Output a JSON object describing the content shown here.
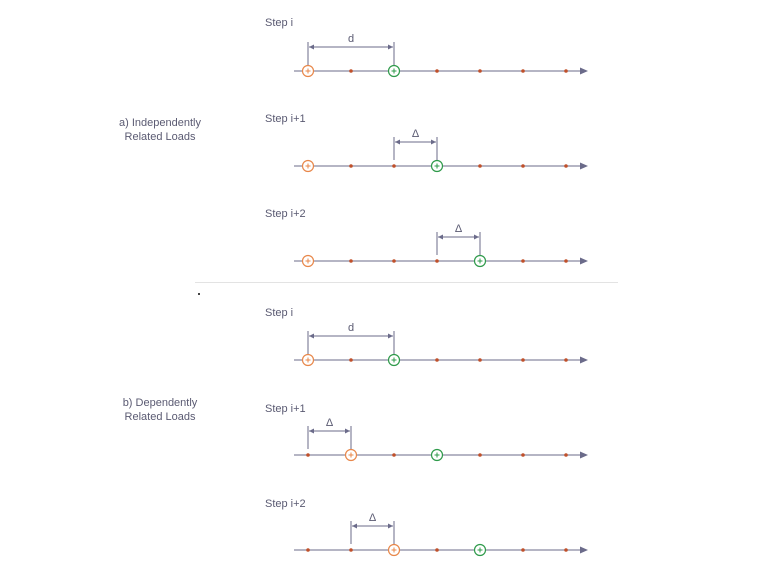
{
  "sections": [
    {
      "label_line1": "a) Independently",
      "label_line2": "Related Loads",
      "steps": [
        {
          "title": "Step i",
          "orange_pos": 0,
          "green_pos": 2,
          "dim_from": 0,
          "dim_to": 2,
          "dim_label": "d"
        },
        {
          "title": "Step i+1",
          "orange_pos": 0,
          "green_pos": 3,
          "dim_from": 2,
          "dim_to": 3,
          "dim_label": "Δ"
        },
        {
          "title": "Step i+2",
          "orange_pos": 0,
          "green_pos": 4,
          "dim_from": 3,
          "dim_to": 4,
          "dim_label": "Δ"
        }
      ]
    },
    {
      "label_line1": "b) Dependently",
      "label_line2": "Related Loads",
      "steps": [
        {
          "title": "Step i",
          "orange_pos": 0,
          "green_pos": 2,
          "dim_from": 0,
          "dim_to": 2,
          "dim_label": "d"
        },
        {
          "title": "Step i+1",
          "orange_pos": 1,
          "green_pos": 3,
          "dim_from": 0,
          "dim_to": 1,
          "dim_label": "Δ"
        },
        {
          "title": "Step i+2",
          "orange_pos": 2,
          "green_pos": 4,
          "dim_from": 1,
          "dim_to": 2,
          "dim_label": "Δ"
        }
      ]
    }
  ],
  "node_count": 7,
  "colors": {
    "axis": "#6b6b8a",
    "orange": "#e8874a",
    "green": "#2e9a4a",
    "node": "#c0502a",
    "dim": "#6b6b8a",
    "text": "#5a5a72"
  }
}
